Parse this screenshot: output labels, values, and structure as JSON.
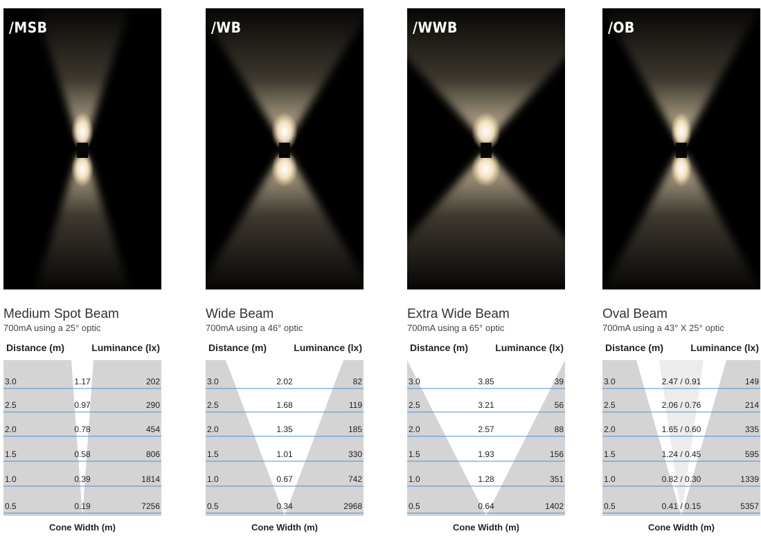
{
  "panels": [
    {
      "code": "/MSB",
      "title": "Medium Spot Beam",
      "subtitle": "700mA using a 25° optic",
      "distance_header": "Distance (m)",
      "luminance_header": "Luminance (lx)",
      "cone_label": "Cone Width (m)",
      "rows": [
        {
          "distance": "3.0",
          "width": "1.17",
          "lux": "202"
        },
        {
          "distance": "2.5",
          "width": "0.97",
          "lux": "290"
        },
        {
          "distance": "2.0",
          "width": "0.78",
          "lux": "454"
        },
        {
          "distance": "1.5",
          "width": "0.58",
          "lux": "806"
        },
        {
          "distance": "1.0",
          "width": "0.39",
          "lux": "1814"
        },
        {
          "distance": "0.5",
          "width": "0.19",
          "lux": "7256"
        }
      ]
    },
    {
      "code": "/WB",
      "title": "Wide Beam",
      "subtitle": "700mA using a 46° optic",
      "distance_header": "Distance (m)",
      "luminance_header": "Luminance (lx)",
      "cone_label": "Cone Width (m)",
      "rows": [
        {
          "distance": "3.0",
          "width": "2.02",
          "lux": "82"
        },
        {
          "distance": "2.5",
          "width": "1.68",
          "lux": "119"
        },
        {
          "distance": "2.0",
          "width": "1.35",
          "lux": "185"
        },
        {
          "distance": "1.5",
          "width": "1.01",
          "lux": "330"
        },
        {
          "distance": "1.0",
          "width": "0.67",
          "lux": "742"
        },
        {
          "distance": "0.5",
          "width": "0.34",
          "lux": "2968"
        }
      ]
    },
    {
      "code": "/WWB",
      "title": "Extra Wide Beam",
      "subtitle": "700mA using a 65° optic",
      "distance_header": "Distance (m)",
      "luminance_header": "Luminance (lx)",
      "cone_label": "Cone Width (m)",
      "rows": [
        {
          "distance": "3.0",
          "width": "3.85",
          "lux": "39"
        },
        {
          "distance": "2.5",
          "width": "3.21",
          "lux": "56"
        },
        {
          "distance": "2.0",
          "width": "2.57",
          "lux": "88"
        },
        {
          "distance": "1.5",
          "width": "1.93",
          "lux": "156"
        },
        {
          "distance": "1.0",
          "width": "1.28",
          "lux": "351"
        },
        {
          "distance": "0.5",
          "width": "0.64",
          "lux": "1402"
        }
      ]
    },
    {
      "code": "/OB",
      "title": "Oval Beam",
      "subtitle": "700mA using a 43° X 25° optic",
      "distance_header": "Distance (m)",
      "luminance_header": "Luminance (lx)",
      "cone_label": "Cone Width (m)",
      "rows": [
        {
          "distance": "3.0",
          "width": "2.47 / 0.91",
          "lux": "149"
        },
        {
          "distance": "2.5",
          "width": "2.06 / 0.76",
          "lux": "214"
        },
        {
          "distance": "2.0",
          "width": "1.65 / 0.60",
          "lux": "335"
        },
        {
          "distance": "1.5",
          "width": "1.24 / 0.45",
          "lux": "595"
        },
        {
          "distance": "1.0",
          "width": "0.82 / 0.30",
          "lux": "1339"
        },
        {
          "distance": "0.5",
          "width": "0.41 / 0.15",
          "lux": "5357"
        }
      ]
    }
  ],
  "colors": {
    "row_line": "#4a90d9",
    "cone_fill": "#d4d4d4",
    "oval_inner_fill": "#ececec",
    "glow": "#f5e2bd"
  }
}
